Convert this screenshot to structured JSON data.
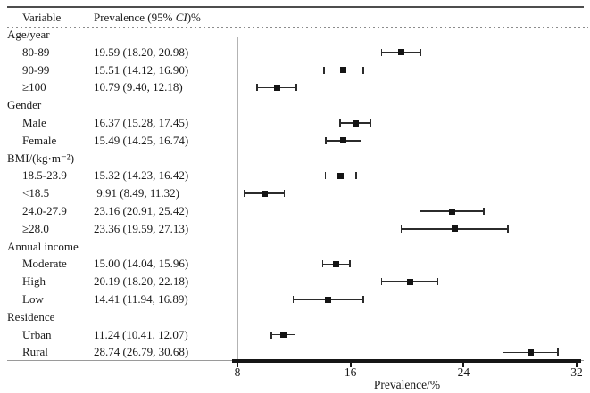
{
  "chart_data": {
    "type": "forest",
    "columns": {
      "variable": "Variable",
      "prevalence_prefix": "Prevalence (95% ",
      "prevalence_italic": "CI",
      "prevalence_suffix": ")%"
    },
    "xlabel": "Prevalence/%",
    "xticks": [
      "8",
      "16",
      "24",
      "32"
    ],
    "xlim": [
      8,
      32
    ],
    "groups": [
      {
        "label": "Age/year",
        "items": [
          {
            "label": "80-89",
            "display": "19.59 (18.20, 20.98)",
            "value": 19.59,
            "lo": 18.2,
            "hi": 20.98
          },
          {
            "label": "90-99",
            "display": "15.51 (14.12, 16.90)",
            "value": 15.51,
            "lo": 14.12,
            "hi": 16.9
          },
          {
            "label": "≥100",
            "display": "10.79 (9.40, 12.18)",
            "value": 10.79,
            "lo": 9.4,
            "hi": 12.18
          }
        ]
      },
      {
        "label": "Gender",
        "items": [
          {
            "label": "Male",
            "display": "16.37 (15.28, 17.45)",
            "value": 16.37,
            "lo": 15.28,
            "hi": 17.45
          },
          {
            "label": "Female",
            "display": "15.49 (14.25, 16.74)",
            "value": 15.49,
            "lo": 14.25,
            "hi": 16.74
          }
        ]
      },
      {
        "label": "BMI/(kg·m⁻²)",
        "items": [
          {
            "label": "18.5-23.9",
            "display": "15.32 (14.23, 16.42)",
            "value": 15.32,
            "lo": 14.23,
            "hi": 16.42
          },
          {
            "label": "<18.5",
            "display": " 9.91 (8.49, 11.32)",
            "value": 9.91,
            "lo": 8.49,
            "hi": 11.32
          },
          {
            "label": "24.0-27.9",
            "display": "23.16 (20.91, 25.42)",
            "value": 23.16,
            "lo": 20.91,
            "hi": 25.42
          },
          {
            "label": "≥28.0",
            "display": "23.36 (19.59, 27.13)",
            "value": 23.36,
            "lo": 19.59,
            "hi": 27.13
          }
        ]
      },
      {
        "label": "Annual income",
        "items": [
          {
            "label": "Moderate",
            "display": "15.00 (14.04, 15.96)",
            "value": 15.0,
            "lo": 14.04,
            "hi": 15.96
          },
          {
            "label": "High",
            "display": "20.19 (18.20, 22.18)",
            "value": 20.19,
            "lo": 18.2,
            "hi": 22.18
          },
          {
            "label": "Low",
            "display": "14.41 (11.94, 16.89)",
            "value": 14.41,
            "lo": 11.94,
            "hi": 16.89
          }
        ]
      },
      {
        "label": "Residence",
        "items": [
          {
            "label": "Urban",
            "display": "11.24 (10.41, 12.07)",
            "value": 11.24,
            "lo": 10.41,
            "hi": 12.07
          },
          {
            "label": "Rural",
            "display": "28.74 (26.79, 30.68)",
            "value": 28.74,
            "lo": 26.79,
            "hi": 30.68
          }
        ]
      }
    ],
    "colors": {
      "marker": "#141414",
      "ci_line": "#2b2b2b",
      "reference_line": "#b3b3b3",
      "axis": "#161616",
      "top_rule": "#4d4d4d",
      "text": "#1a1a1a"
    }
  }
}
